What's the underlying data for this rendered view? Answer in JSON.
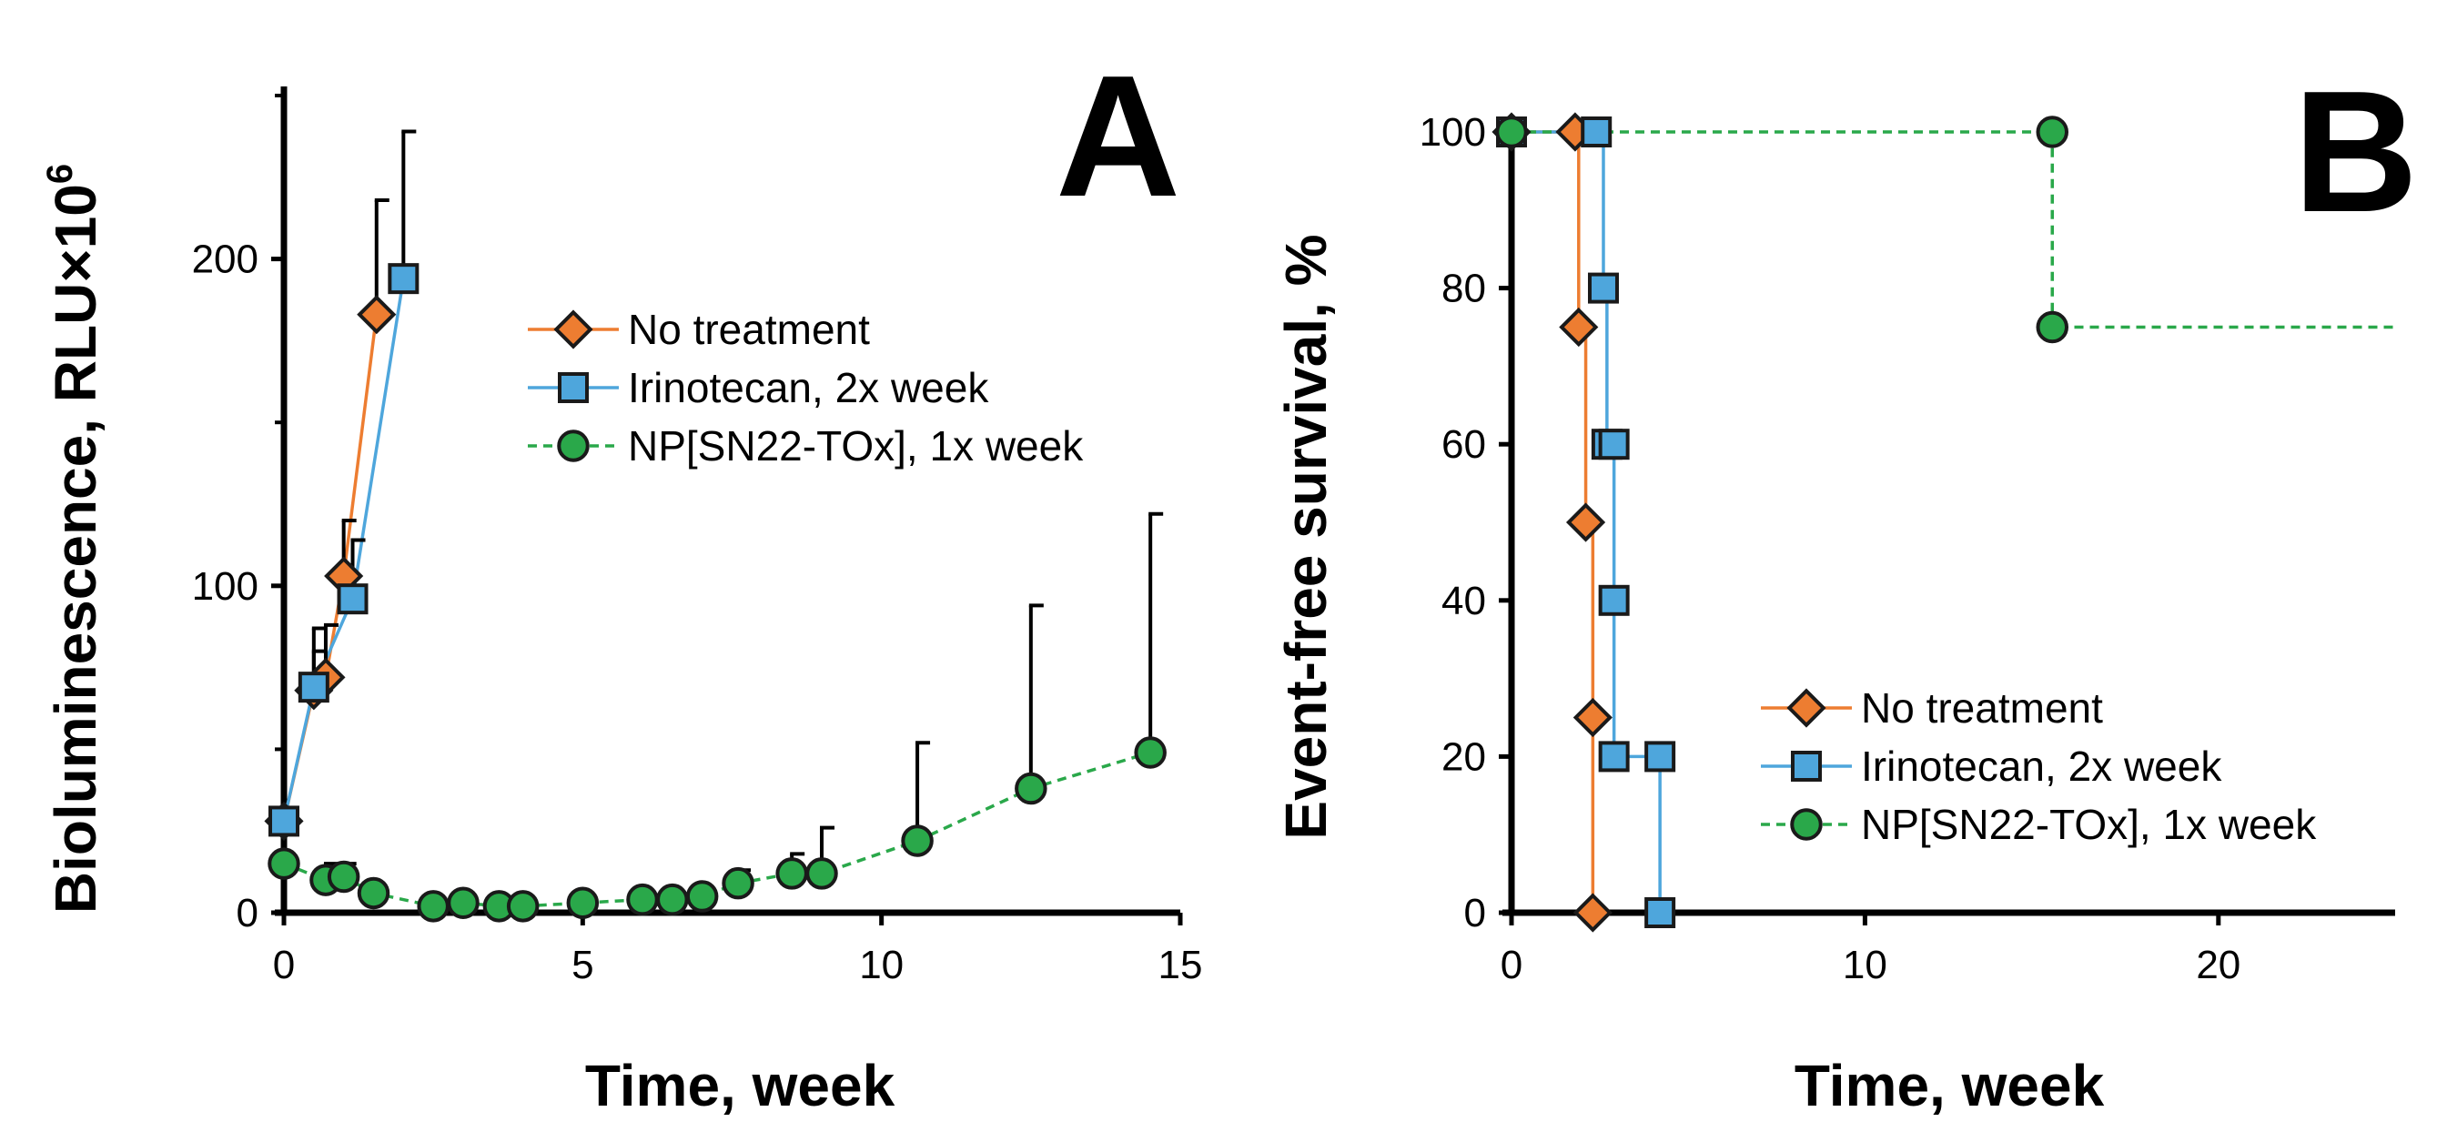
{
  "chart_data": [
    {
      "panel_label": "A",
      "type": "line",
      "xlabel": "Time, week",
      "ylabel": "Bioluminescence, RLU×10",
      "ylabel_sup": "6",
      "xlim": [
        0,
        15
      ],
      "ylim": [
        0,
        250
      ],
      "xticks": [
        0,
        5,
        10,
        15
      ],
      "yticks": [
        0,
        100,
        200
      ],
      "grid": false,
      "legend": "center-right",
      "series": [
        {
          "name": "No treatment",
          "color": "#ed7d31",
          "marker": "diamond",
          "line_style": "solid",
          "points": [
            {
              "x": 0,
              "y": 28,
              "err": 0
            },
            {
              "x": 0.5,
              "y": 68,
              "err": 12
            },
            {
              "x": 0.7,
              "y": 72,
              "err": 16
            },
            {
              "x": 1.0,
              "y": 103,
              "err": 17
            },
            {
              "x": 1.55,
              "y": 183,
              "err": 35
            }
          ]
        },
        {
          "name": "Irinotecan, 2x week",
          "color": "#4ea6dc",
          "marker": "square",
          "line_style": "solid",
          "points": [
            {
              "x": 0,
              "y": 28,
              "err": 0
            },
            {
              "x": 0.5,
              "y": 69,
              "err": 18
            },
            {
              "x": 1.15,
              "y": 96,
              "err": 18
            },
            {
              "x": 2.0,
              "y": 194,
              "err": 45
            }
          ]
        },
        {
          "name": "NP[SN22-TOx], 1x week",
          "color": "#2aa84a",
          "marker": "circle",
          "line_style": "dashed",
          "points": [
            {
              "x": 0,
              "y": 15,
              "err": 0
            },
            {
              "x": 0.7,
              "y": 10,
              "err": 5
            },
            {
              "x": 1.0,
              "y": 11,
              "err": 4
            },
            {
              "x": 1.5,
              "y": 6,
              "err": 0
            },
            {
              "x": 2.5,
              "y": 2,
              "err": 0
            },
            {
              "x": 3.0,
              "y": 3,
              "err": 0
            },
            {
              "x": 3.6,
              "y": 2,
              "err": 0
            },
            {
              "x": 4.0,
              "y": 2,
              "err": 0
            },
            {
              "x": 5.0,
              "y": 3,
              "err": 0
            },
            {
              "x": 6.0,
              "y": 4,
              "err": 0
            },
            {
              "x": 6.5,
              "y": 4,
              "err": 0
            },
            {
              "x": 7.0,
              "y": 5,
              "err": 0
            },
            {
              "x": 7.6,
              "y": 9,
              "err": 4
            },
            {
              "x": 8.5,
              "y": 12,
              "err": 6
            },
            {
              "x": 9.0,
              "y": 12,
              "err": 14
            },
            {
              "x": 10.6,
              "y": 22,
              "err": 30
            },
            {
              "x": 12.5,
              "y": 38,
              "err": 56
            },
            {
              "x": 14.5,
              "y": 49,
              "err": 73
            }
          ]
        }
      ]
    },
    {
      "panel_label": "B",
      "type": "line",
      "xlabel": "Time, week",
      "ylabel": "Event-free survival, %",
      "xlim": [
        0,
        25
      ],
      "ylim": [
        0,
        100
      ],
      "xticks": [
        0,
        10,
        20
      ],
      "yticks": [
        0,
        20,
        40,
        60,
        80,
        100
      ],
      "grid": false,
      "legend": "bottom-right",
      "series": [
        {
          "name": "No treatment",
          "color": "#ed7d31",
          "marker": "diamond",
          "line_style": "solid",
          "points": [
            {
              "x": 0,
              "y": 100
            },
            {
              "x": 1.8,
              "y": 100
            },
            {
              "x": 1.9,
              "y": 75
            },
            {
              "x": 2.1,
              "y": 50
            },
            {
              "x": 2.3,
              "y": 25
            },
            {
              "x": 2.3,
              "y": 0
            }
          ]
        },
        {
          "name": "Irinotecan, 2x week",
          "color": "#4ea6dc",
          "marker": "square",
          "line_style": "solid",
          "points": [
            {
              "x": 0,
              "y": 100
            },
            {
              "x": 2.4,
              "y": 100
            },
            {
              "x": 2.6,
              "y": 80
            },
            {
              "x": 2.7,
              "y": 60
            },
            {
              "x": 2.9,
              "y": 60
            },
            {
              "x": 2.9,
              "y": 40
            },
            {
              "x": 2.9,
              "y": 20
            },
            {
              "x": 4.2,
              "y": 20
            },
            {
              "x": 4.2,
              "y": 0
            }
          ]
        },
        {
          "name": "NP[SN22-TOx], 1x week",
          "color": "#2aa84a",
          "marker": "circle",
          "line_style": "dashed",
          "points": [
            {
              "x": 0,
              "y": 100
            },
            {
              "x": 15.3,
              "y": 100
            },
            {
              "x": 15.3,
              "y": 75
            },
            {
              "x": 25,
              "y": 75
            }
          ],
          "marker_points": [
            {
              "x": 0,
              "y": 100
            },
            {
              "x": 15.3,
              "y": 100
            },
            {
              "x": 15.3,
              "y": 75
            }
          ]
        }
      ]
    }
  ]
}
